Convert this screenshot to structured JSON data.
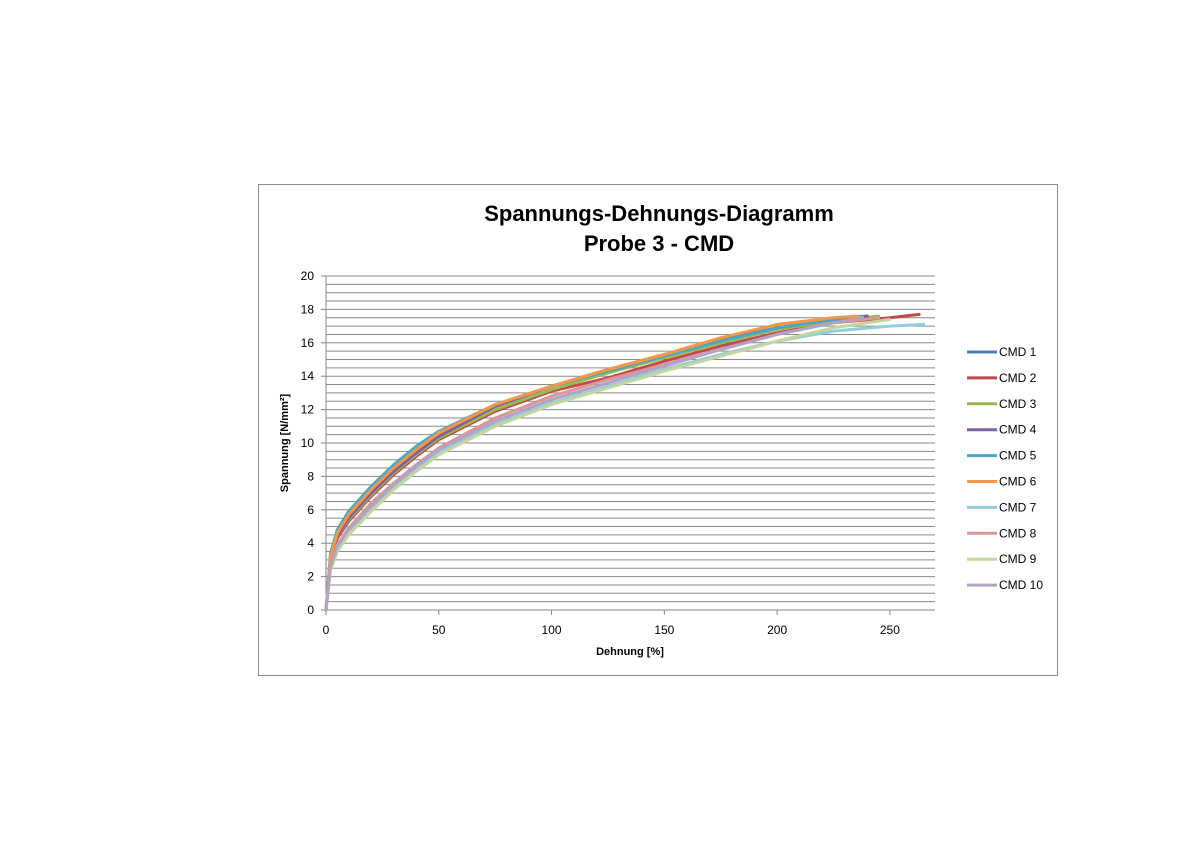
{
  "chart_data": {
    "type": "line",
    "title": "Spannungs-Dehnungs-Diagramm",
    "subtitle": "Probe 3 - CMD",
    "xlabel": "Dehnung [%]",
    "ylabel": "Spannung [N/mm²]",
    "xlim": [
      0,
      270
    ],
    "ylim": [
      0,
      20
    ],
    "xticks": [
      0,
      50,
      100,
      150,
      200,
      250
    ],
    "yticks": [
      0,
      2,
      4,
      6,
      8,
      10,
      12,
      14,
      16,
      18,
      20
    ],
    "grid": true,
    "legend_position": "right",
    "series": [
      {
        "name": "CMD 1",
        "color": "#4a7ebb",
        "x": [
          0,
          2,
          5,
          10,
          20,
          30,
          40,
          50,
          75,
          100,
          125,
          150,
          175,
          200,
          225,
          240
        ],
        "y": [
          0,
          3.2,
          4.5,
          5.6,
          7.0,
          8.4,
          9.5,
          10.5,
          12.2,
          13.4,
          14.3,
          15.2,
          16.0,
          16.8,
          17.4,
          17.6
        ]
      },
      {
        "name": "CMD 2",
        "color": "#be4b48",
        "x": [
          0,
          2,
          5,
          10,
          20,
          30,
          40,
          50,
          75,
          100,
          125,
          150,
          175,
          200,
          225,
          250,
          263
        ],
        "y": [
          0,
          3.0,
          4.3,
          5.3,
          6.8,
          8.1,
          9.2,
          10.2,
          11.9,
          13.1,
          13.9,
          14.9,
          15.8,
          16.6,
          17.2,
          17.5,
          17.7
        ]
      },
      {
        "name": "CMD 3",
        "color": "#98b954",
        "x": [
          0,
          2,
          5,
          10,
          20,
          30,
          40,
          50,
          75,
          100,
          125,
          150,
          175,
          200,
          225,
          245
        ],
        "y": [
          0,
          3.1,
          4.4,
          5.4,
          6.9,
          8.2,
          9.3,
          10.3,
          12.0,
          13.2,
          14.2,
          15.1,
          16.0,
          16.8,
          17.3,
          17.6
        ]
      },
      {
        "name": "CMD 4",
        "color": "#7d60a0",
        "x": [
          0,
          2,
          5,
          10,
          20,
          30,
          40,
          50,
          75,
          100,
          125,
          150,
          175,
          200,
          225,
          240
        ],
        "y": [
          0,
          3.1,
          4.4,
          5.5,
          7.0,
          8.3,
          9.4,
          10.4,
          12.2,
          13.4,
          14.4,
          15.3,
          16.2,
          16.9,
          17.4,
          17.6
        ]
      },
      {
        "name": "CMD 5",
        "color": "#46aac5",
        "x": [
          0,
          2,
          5,
          10,
          20,
          30,
          40,
          50,
          75,
          100,
          125,
          150,
          175,
          200,
          225,
          238
        ],
        "y": [
          0,
          3.4,
          4.8,
          5.9,
          7.4,
          8.7,
          9.8,
          10.7,
          12.3,
          13.4,
          14.3,
          15.2,
          16.1,
          16.9,
          17.4,
          17.6
        ]
      },
      {
        "name": "CMD 6",
        "color": "#f79646",
        "x": [
          0,
          2,
          5,
          10,
          20,
          30,
          40,
          50,
          75,
          100,
          125,
          150,
          175,
          200,
          225,
          236
        ],
        "y": [
          0,
          3.2,
          4.6,
          5.7,
          7.2,
          8.5,
          9.6,
          10.6,
          12.3,
          13.4,
          14.4,
          15.3,
          16.3,
          17.1,
          17.5,
          17.6
        ]
      },
      {
        "name": "CMD 7",
        "color": "#92cddc",
        "x": [
          0,
          2,
          5,
          10,
          20,
          30,
          40,
          50,
          75,
          100,
          125,
          150,
          175,
          200,
          225,
          250,
          265
        ],
        "y": [
          0,
          2.5,
          3.6,
          4.6,
          6.0,
          7.3,
          8.4,
          9.4,
          11.1,
          12.4,
          13.4,
          14.4,
          15.3,
          16.1,
          16.7,
          17.0,
          17.1
        ]
      },
      {
        "name": "CMD 8",
        "color": "#d99795",
        "x": [
          0,
          2,
          5,
          10,
          20,
          30,
          40,
          50,
          75,
          100,
          125,
          150,
          175,
          200,
          225,
          245
        ],
        "y": [
          0,
          2.7,
          3.9,
          4.9,
          6.4,
          7.6,
          8.7,
          9.7,
          11.5,
          12.8,
          13.8,
          14.7,
          15.6,
          16.5,
          17.2,
          17.5
        ]
      },
      {
        "name": "CMD 9",
        "color": "#c3d69b",
        "x": [
          0,
          2,
          5,
          10,
          20,
          30,
          40,
          50,
          75,
          100,
          125,
          150,
          175,
          200,
          225,
          250
        ],
        "y": [
          0,
          2.4,
          3.5,
          4.5,
          5.9,
          7.2,
          8.3,
          9.3,
          11.0,
          12.3,
          13.3,
          14.3,
          15.2,
          16.1,
          16.9,
          17.4
        ]
      },
      {
        "name": "CMD 10",
        "color": "#b3a2c7",
        "x": [
          0,
          2,
          5,
          10,
          20,
          30,
          40,
          50,
          75,
          100,
          125,
          150,
          175,
          200,
          225,
          238
        ],
        "y": [
          0,
          2.6,
          3.8,
          4.8,
          6.2,
          7.5,
          8.6,
          9.6,
          11.3,
          12.6,
          13.6,
          14.6,
          15.6,
          16.5,
          17.2,
          17.5
        ]
      }
    ]
  }
}
